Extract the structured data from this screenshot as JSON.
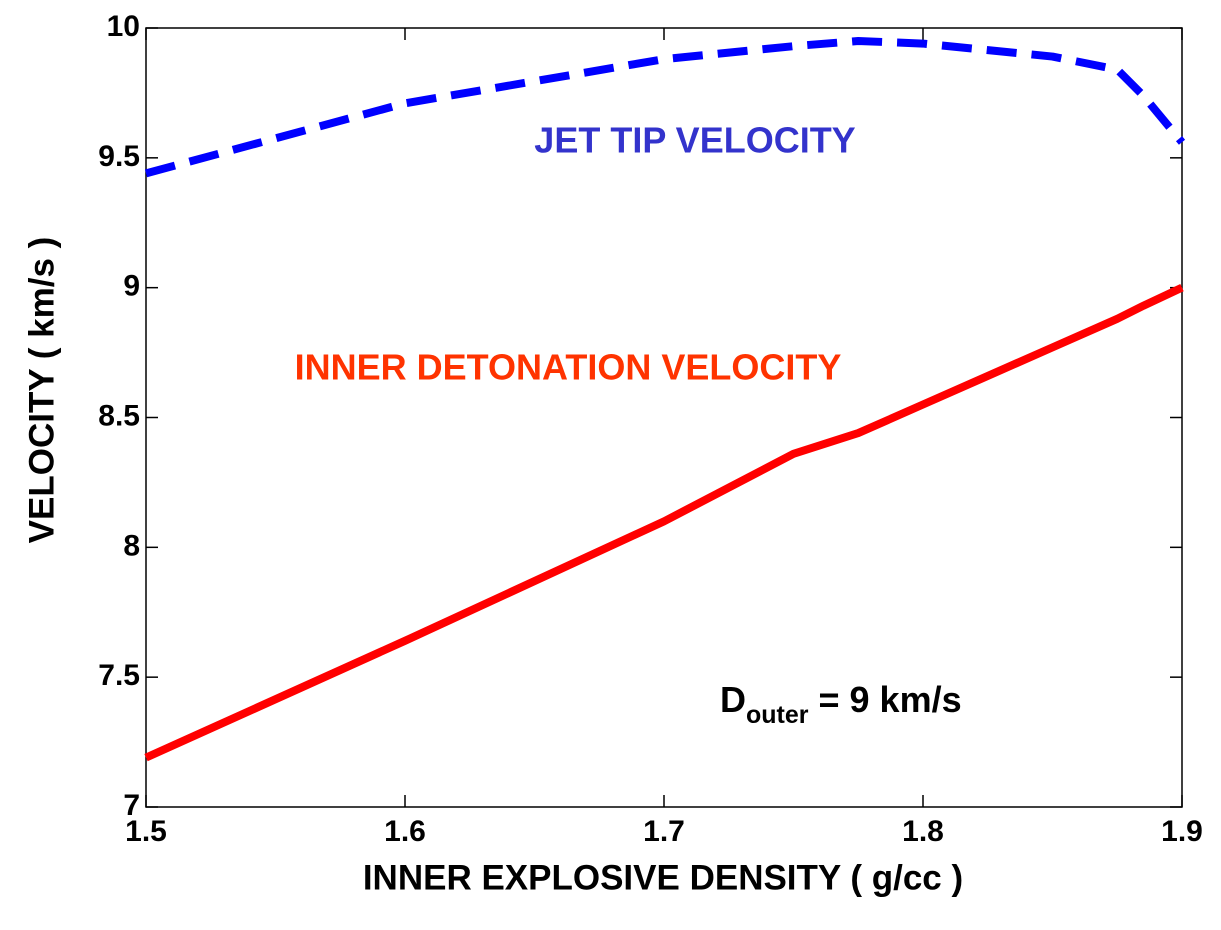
{
  "chart_data": {
    "type": "line",
    "xlabel": "INNER EXPLOSIVE DENSITY  ( g/cc )",
    "ylabel": "VELOCITY  ( km/s )",
    "x": [
      1.5,
      1.6,
      1.7,
      1.75,
      1.775,
      1.8,
      1.85,
      1.875,
      1.885,
      1.9
    ],
    "series": [
      {
        "name": "JET TIP VELOCITY",
        "color": "#0000ff",
        "dash": true,
        "label_color": "#3333cc",
        "values": [
          9.44,
          9.71,
          9.88,
          9.93,
          9.95,
          9.94,
          9.89,
          9.84,
          9.74,
          9.56
        ]
      },
      {
        "name": "INNER DETONATION VELOCITY",
        "color": "#ff0000",
        "dash": false,
        "label_color": "#ff3300",
        "values": [
          7.19,
          7.64,
          8.1,
          8.36,
          8.44,
          8.55,
          8.77,
          8.88,
          8.93,
          9.0
        ]
      }
    ],
    "annotation": {
      "main": "D",
      "sub": "outer",
      "rest": " = 9 km/s"
    },
    "xlim": [
      1.5,
      1.9
    ],
    "ylim": [
      7,
      10
    ],
    "xticks": [
      1.5,
      1.6,
      1.7,
      1.8,
      1.9
    ],
    "yticks": [
      7,
      7.5,
      8,
      8.5,
      9,
      9.5,
      10
    ]
  }
}
